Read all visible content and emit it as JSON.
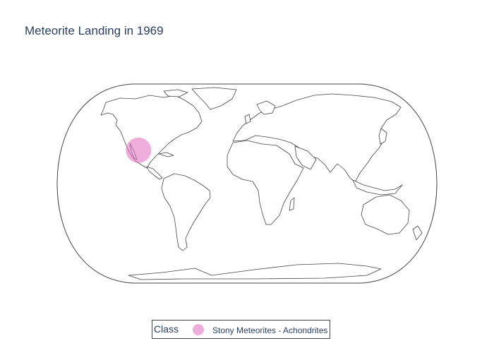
{
  "title": "Meteorite Landing in 1969",
  "legend": {
    "title": "Class",
    "items": [
      {
        "label": "Stony Meteorites - Achondrites",
        "color": "#e377c2"
      }
    ]
  },
  "map": {
    "projection": "natural earth",
    "points": [
      {
        "class": "Stony Meteorites - Achondrites",
        "lat": 26.97,
        "lon": -105.31,
        "color": "#e377c2",
        "opacity": 0.6
      }
    ]
  }
}
